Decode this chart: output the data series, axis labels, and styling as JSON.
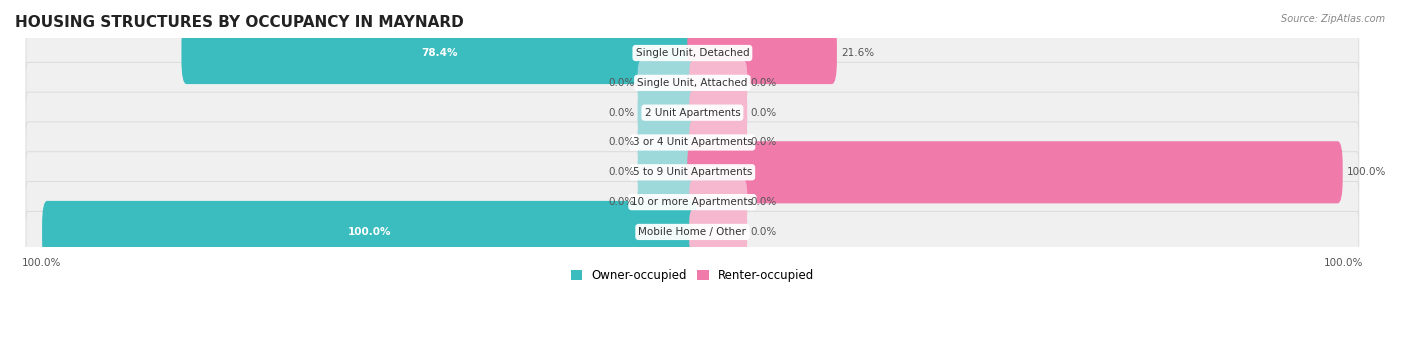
{
  "title": "HOUSING STRUCTURES BY OCCUPANCY IN MAYNARD",
  "source": "Source: ZipAtlas.com",
  "categories": [
    "Single Unit, Detached",
    "Single Unit, Attached",
    "2 Unit Apartments",
    "3 or 4 Unit Apartments",
    "5 to 9 Unit Apartments",
    "10 or more Apartments",
    "Mobile Home / Other"
  ],
  "owner_values": [
    78.4,
    0.0,
    0.0,
    0.0,
    0.0,
    0.0,
    100.0
  ],
  "renter_values": [
    21.6,
    0.0,
    0.0,
    0.0,
    100.0,
    0.0,
    0.0
  ],
  "owner_color": "#3bbcbf",
  "renter_color": "#f07aaa",
  "owner_color_light": "#9dd8db",
  "renter_color_light": "#f5b8ce",
  "title_fontsize": 11,
  "label_fontsize": 7.5,
  "bar_label_fontsize": 7.5,
  "legend_fontsize": 8.5,
  "axis_label_fontsize": 7.5,
  "stub_size": 8.0,
  "xlim_left": -105,
  "xlim_right": 105
}
